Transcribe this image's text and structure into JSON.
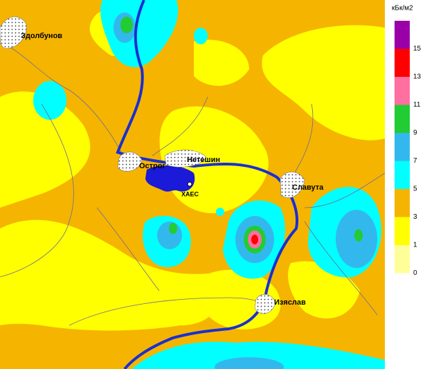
{
  "map": {
    "places": {
      "zdolbunov": "Здолбунов",
      "ostrog": "Острог",
      "neteshin": "Нетешин",
      "haes": "ХАЕС",
      "slavuta": "Славута",
      "izyaslav": "Изяслав"
    },
    "legend": {
      "unit": "кБк/м2",
      "levels": [
        {
          "label": 15,
          "color": "#9a00a8"
        },
        {
          "label": 13,
          "color": "#ff0000"
        },
        {
          "label": 11,
          "color": "#ff6fa0"
        },
        {
          "label": 9,
          "color": "#22cc33"
        },
        {
          "label": 7,
          "color": "#33b8ee"
        },
        {
          "label": 5,
          "color": "#00ffff"
        },
        {
          "label": 3,
          "color": "#f5b400"
        },
        {
          "label": 1,
          "color": "#ffff00"
        },
        {
          "label": 0,
          "color": "#ffff99"
        }
      ]
    }
  }
}
